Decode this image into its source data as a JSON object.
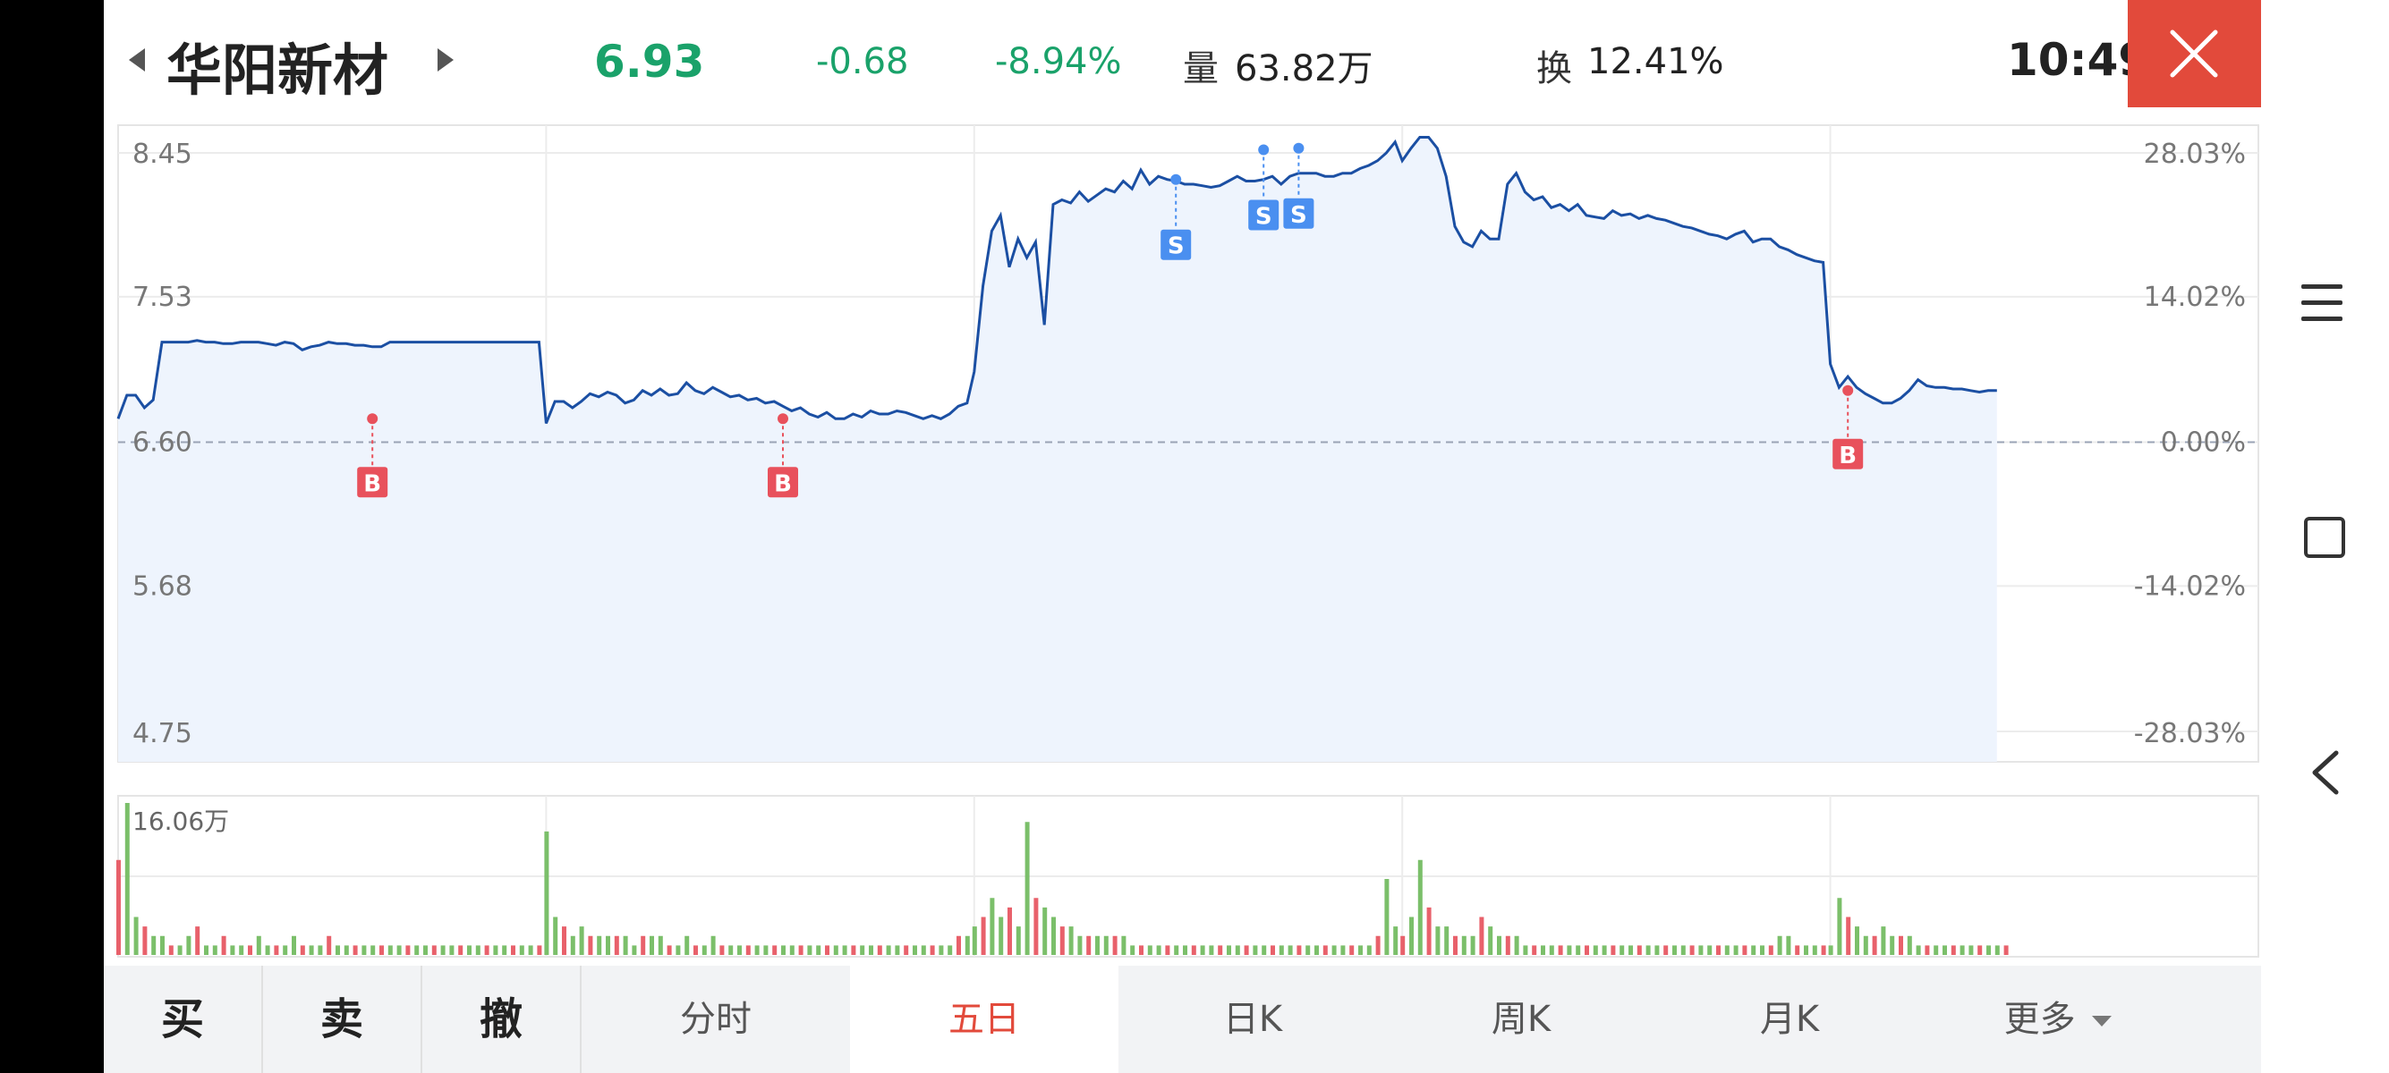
{
  "header": {
    "stock_name": "华阳新材",
    "price": "6.93",
    "change": "-0.68",
    "change_pct": "-8.94%",
    "volume_label": "量",
    "volume_value": "63.82万",
    "turnover_label": "换",
    "turnover_value": "12.41%",
    "time": "10:49",
    "close_icon": "close-icon"
  },
  "colors": {
    "down_green": "#1aa26a",
    "up_red": "#e24a3b",
    "line_blue": "#1b4fa3",
    "fill_blue": "#eef4fd",
    "sell_marker": "#4a8ff0",
    "buy_marker": "#e8515c"
  },
  "chart_data": {
    "type": "line",
    "period": "五日",
    "days": 5,
    "base_price": 6.6,
    "y_ticks_left": [
      "8.45",
      "7.53",
      "6.60",
      "5.68",
      "4.75"
    ],
    "y_ticks_right": [
      "28.03%",
      "14.02%",
      "0.00%",
      "-14.02%",
      "-28.03%"
    ],
    "ylim": [
      4.75,
      8.45
    ],
    "series": [
      {
        "values": [
          6.75,
          6.9,
          6.9,
          6.82,
          6.87,
          7.24,
          7.24,
          7.24,
          7.24,
          7.25,
          7.24,
          7.24,
          7.23,
          7.23,
          7.24,
          7.24,
          7.24,
          7.23,
          7.22,
          7.24,
          7.23,
          7.19,
          7.21,
          7.22,
          7.24,
          7.23,
          7.23,
          7.22,
          7.22,
          7.21,
          7.21,
          7.24,
          7.24,
          7.24,
          7.24,
          7.24,
          7.24,
          7.24,
          7.24,
          7.24,
          7.24,
          7.24,
          7.24,
          7.24,
          7.24,
          7.24,
          7.24,
          7.24,
          7.24,
          6.72,
          6.86,
          6.86,
          6.82,
          6.86,
          6.91,
          6.89,
          6.92,
          6.9,
          6.85,
          6.87,
          6.93,
          6.9,
          6.94,
          6.9,
          6.91,
          6.98,
          6.93,
          6.91,
          6.95,
          6.92,
          6.89,
          6.9,
          6.87,
          6.88,
          6.85,
          6.86,
          6.83,
          6.8,
          6.82,
          6.78,
          6.76,
          6.79,
          6.75,
          6.75,
          6.78,
          6.76,
          6.8,
          6.78,
          6.78,
          6.8,
          6.79,
          6.77,
          6.75,
          6.77,
          6.75,
          6.78,
          6.83,
          6.85,
          7.05,
          7.6,
          7.95,
          8.05,
          7.72,
          7.9,
          7.78,
          7.88,
          7.35,
          8.12,
          8.15,
          8.13,
          8.2,
          8.14,
          8.18,
          8.22,
          8.2,
          8.27,
          8.22,
          8.34,
          8.25,
          8.3,
          8.28,
          8.27,
          8.25,
          8.25,
          8.24,
          8.23,
          8.24,
          8.27,
          8.3,
          8.27,
          8.27,
          8.28,
          8.3,
          8.25,
          8.3,
          8.32,
          8.32,
          8.32,
          8.3,
          8.3,
          8.32,
          8.32,
          8.35,
          8.37,
          8.4,
          8.45,
          8.52,
          8.4,
          8.48,
          8.55,
          8.55,
          8.48,
          8.3,
          7.98,
          7.88,
          7.85,
          7.95,
          7.9,
          7.9,
          8.25,
          8.32,
          8.2,
          8.15,
          8.17,
          8.1,
          8.12,
          8.08,
          8.12,
          8.05,
          8.04,
          8.03,
          8.08,
          8.05,
          8.06,
          8.03,
          8.05,
          8.03,
          8.02,
          8.0,
          7.98,
          7.97,
          7.95,
          7.93,
          7.92,
          7.9,
          7.93,
          7.95,
          7.88,
          7.9,
          7.9,
          7.85,
          7.83,
          7.8,
          7.78,
          7.76,
          7.75,
          7.1,
          6.95,
          7.02,
          6.95,
          6.91,
          6.88,
          6.85,
          6.85,
          6.88,
          6.93,
          7.0,
          6.96,
          6.95,
          6.95,
          6.94,
          6.94,
          6.93,
          6.92,
          6.93,
          6.93
        ]
      }
    ],
    "trade_markers": [
      {
        "label": "B",
        "price": 6.75
      },
      {
        "label": "B",
        "price": 6.75
      },
      {
        "label": "S",
        "price": 8.28
      },
      {
        "label": "S",
        "price": 8.47
      },
      {
        "label": "S",
        "price": 8.48
      },
      {
        "label": "B",
        "price": 6.93
      }
    ],
    "volume": {
      "max_label": "16.06万",
      "values": [
        10,
        16,
        4,
        3,
        2,
        2,
        1,
        1,
        2,
        3,
        1,
        1,
        2,
        1,
        1,
        1,
        2,
        1,
        1,
        1,
        2,
        1,
        1,
        1,
        2,
        1,
        1,
        1,
        1,
        1,
        1,
        1,
        1,
        1,
        1,
        1,
        1,
        1,
        1,
        1,
        1,
        1,
        1,
        1,
        1,
        1,
        1,
        1,
        1,
        13,
        4,
        3,
        2,
        3,
        2,
        2,
        2,
        2,
        2,
        1,
        2,
        2,
        2,
        1,
        1,
        2,
        1,
        1,
        2,
        1,
        1,
        1,
        1,
        1,
        1,
        1,
        1,
        1,
        1,
        1,
        1,
        1,
        1,
        1,
        1,
        1,
        1,
        1,
        1,
        1,
        1,
        1,
        1,
        1,
        1,
        1,
        2,
        2,
        3,
        4,
        6,
        4,
        5,
        3,
        14,
        6,
        5,
        4,
        3,
        3,
        2,
        2,
        2,
        2,
        2,
        2,
        1,
        1,
        1,
        1,
        1,
        1,
        1,
        1,
        1,
        1,
        1,
        1,
        1,
        1,
        1,
        1,
        1,
        1,
        1,
        1,
        1,
        1,
        1,
        1,
        1,
        1,
        1,
        1,
        2,
        8,
        3,
        2,
        4,
        10,
        5,
        3,
        3,
        2,
        2,
        2,
        4,
        3,
        2,
        2,
        2,
        1,
        1,
        1,
        1,
        1,
        1,
        1,
        1,
        1,
        1,
        1,
        1,
        1,
        1,
        1,
        1,
        1,
        1,
        1,
        1,
        1,
        1,
        1,
        1,
        1,
        1,
        1,
        1,
        1,
        2,
        2,
        1,
        1,
        1,
        1,
        1,
        6,
        4,
        3,
        2,
        2,
        3,
        2,
        2,
        2,
        1,
        1,
        1,
        1,
        1,
        1,
        1,
        1,
        1,
        1,
        1
      ]
    }
  },
  "toolbar": {
    "buy": "买",
    "sell": "卖",
    "cancel": "撤",
    "tab_intraday": "分时",
    "tab_five_day": "五日",
    "tab_day_k": "日K",
    "tab_week_k": "周K",
    "tab_month_k": "月K",
    "tab_more": "更多"
  },
  "system_nav": {
    "menu_icon": "menu-icon",
    "overview_icon": "square-icon",
    "back_icon": "back-icon"
  }
}
